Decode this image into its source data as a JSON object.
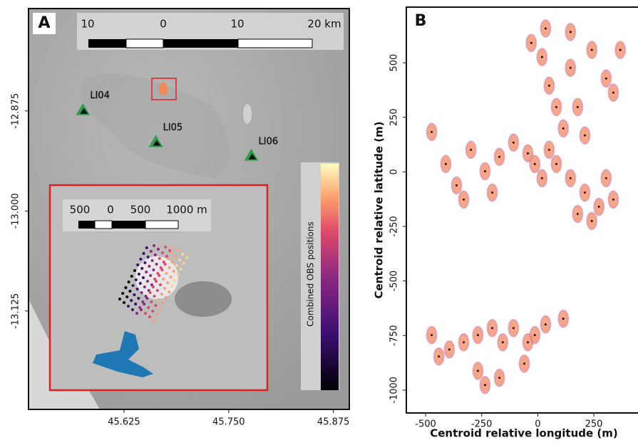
{
  "chart_data": [
    {
      "type": "map",
      "panel_label": "A",
      "xlim": [
        45.511,
        45.894
      ],
      "ylim": [
        -13.248,
        -12.747
      ],
      "xticks": [
        45.625,
        {
          "value": 45.75,
          "label": "45.750"
        },
        45.875
      ],
      "yticks": [
        -12.875,
        {
          "value": -13,
          "label": "-13.000"
        },
        -13.125
      ],
      "stations": [
        {
          "name": "LI04",
          "lon": 45.576,
          "lat": -12.874
        },
        {
          "name": "LI05",
          "lon": 45.663,
          "lat": -12.914
        },
        {
          "name": "LI06",
          "lon": 45.777,
          "lat": -12.931
        }
      ],
      "station_color": "#2e9e4f",
      "scale_bar": [
        "10",
        "0",
        "10",
        "20 km"
      ],
      "inset_scale_bar": [
        "500",
        "0",
        "500",
        "1000 m"
      ],
      "colorbar_label": "Combined OBS positions"
    },
    {
      "type": "scatter",
      "panel_label": "B",
      "xlabel": "Centroid relative longitude (m)",
      "ylabel": "Centroid relative latitude (m)",
      "xlim": [
        -586,
        447
      ],
      "ylim": [
        -1105,
        755
      ],
      "xticks": [
        -500,
        -250,
        0,
        250
      ],
      "yticks": [
        500,
        250,
        0,
        -250,
        -500,
        -750,
        -1000
      ],
      "color": "#f4895f",
      "x": [
        -29,
        19,
        51,
        83,
        114,
        146,
        241,
        305,
        368,
        337,
        35,
        146,
        210,
        178,
        -410,
        -362,
        -298,
        -235,
        -171,
        -108,
        -44,
        -330,
        -203,
        -473,
        83,
        146,
        210,
        273,
        337,
        241,
        178,
        305,
        -13,
        19,
        51,
        -473,
        -441,
        -394,
        -330,
        -267,
        -203,
        -156,
        -108,
        -44,
        -13,
        -60,
        -267,
        -235,
        -171,
        35,
        114
      ],
      "y": [
        591,
        526,
        395,
        297,
        199,
        477,
        559,
        428,
        559,
        363,
        657,
        641,
        167,
        297,
        36,
        -62,
        101,
        3,
        69,
        134,
        85,
        -127,
        -95,
        183,
        36,
        -29,
        -95,
        -160,
        -127,
        -225,
        -193,
        -29,
        36,
        -29,
        101,
        -748,
        -846,
        -814,
        -781,
        -748,
        -716,
        -781,
        -716,
        -781,
        -748,
        -879,
        -912,
        -977,
        -944,
        -699,
        -673
      ]
    }
  ]
}
